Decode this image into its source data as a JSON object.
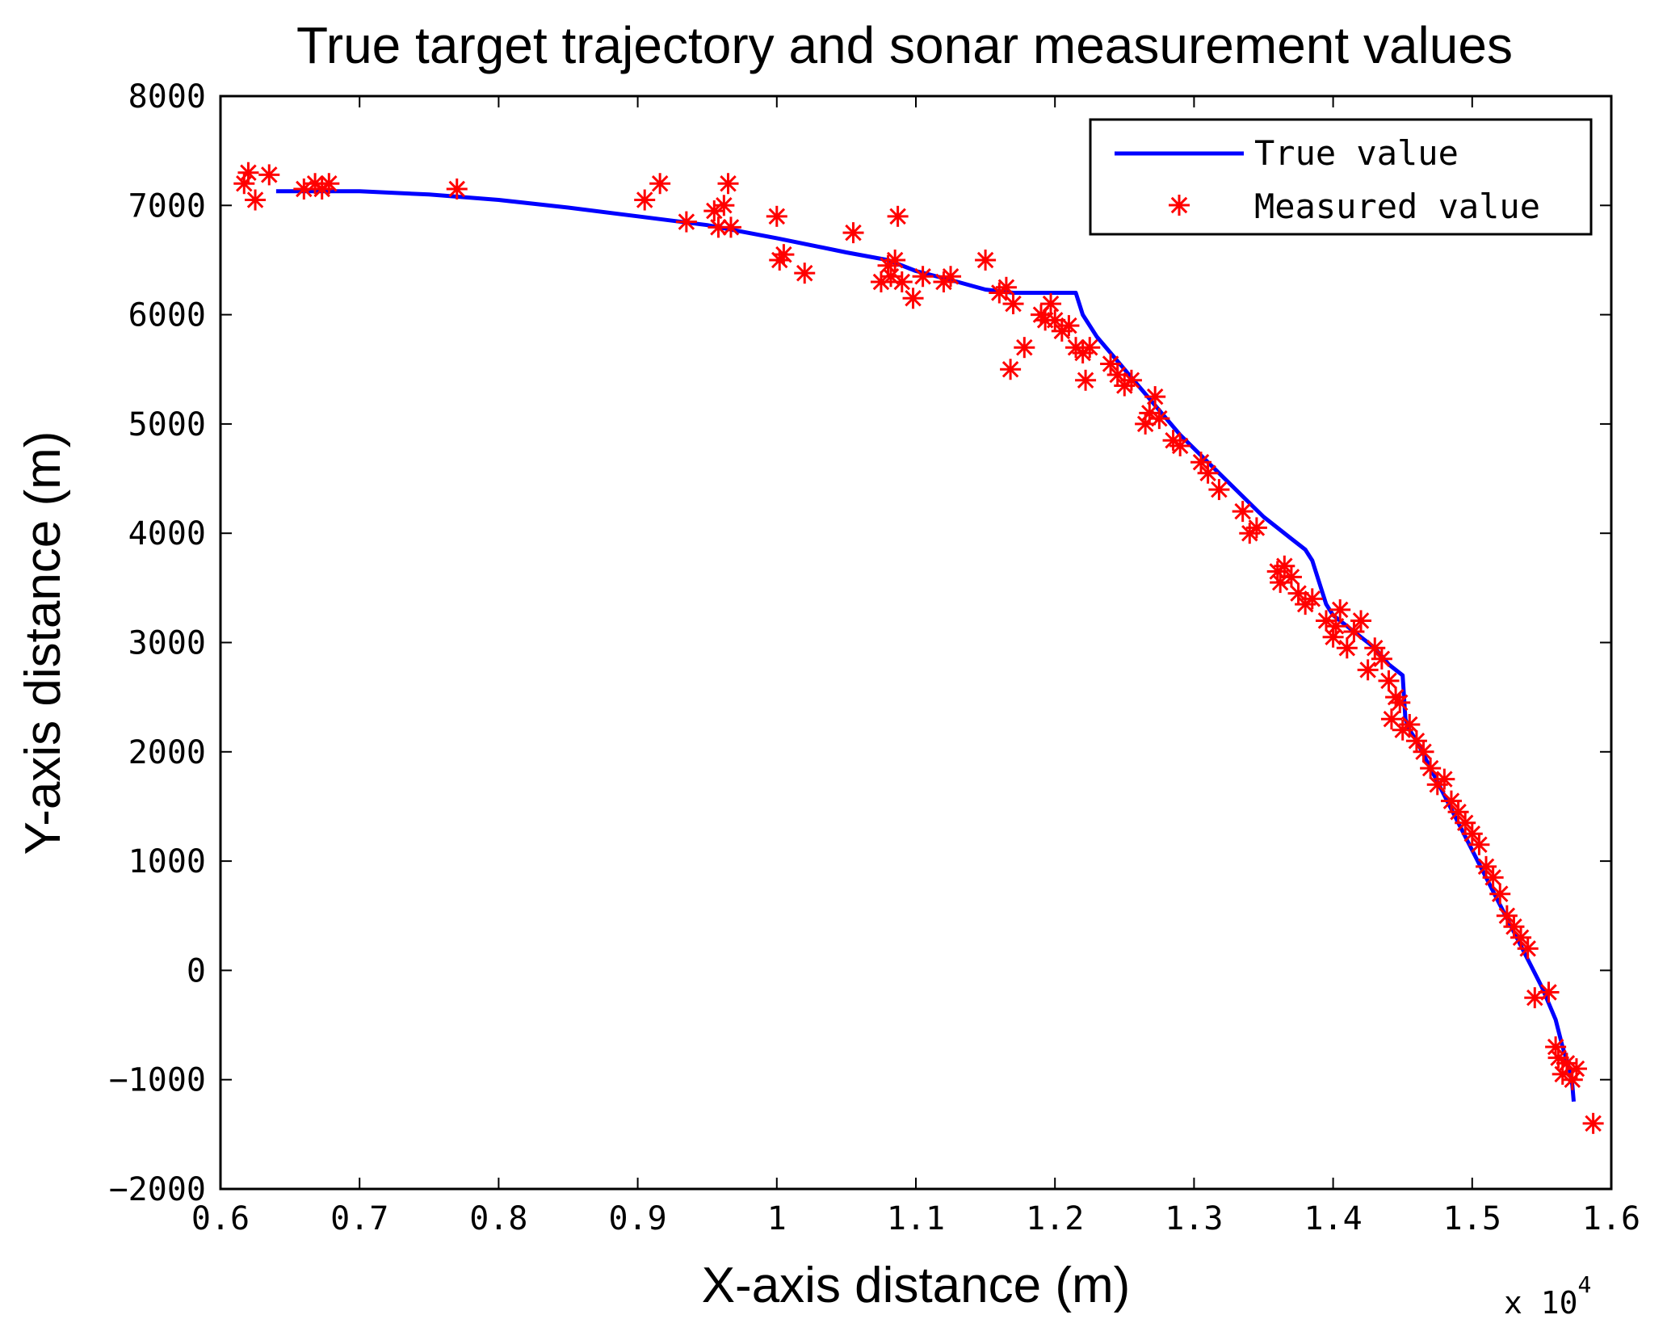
{
  "chart_data": {
    "type": "line",
    "title": "True target trajectory and sonar measurement values",
    "xlabel": "X-axis distance (m)",
    "ylabel": "Y-axis distance (m)",
    "xlim": [
      0.6,
      1.6
    ],
    "ylim": [
      -2000,
      8000
    ],
    "x_ticks": [
      "0.6",
      "0.7",
      "0.8",
      "0.9",
      "1",
      "1.1",
      "1.2",
      "1.3",
      "1.4",
      "1.5",
      "1.6"
    ],
    "y_ticks": [
      "-2000",
      "-1000",
      "0",
      "1000",
      "2000",
      "3000",
      "4000",
      "5000",
      "6000",
      "7000",
      "8000"
    ],
    "x_multiplier": {
      "prefix": "x 10",
      "exponent": "4"
    },
    "grid": false,
    "legend_position": "top-right",
    "series": [
      {
        "name": "True value",
        "style": "line",
        "color": "#0000ff",
        "x": [
          0.64,
          0.7,
          0.75,
          0.8,
          0.85,
          0.9,
          0.95,
          1.0,
          1.05,
          1.08,
          1.1,
          1.13,
          1.15,
          1.17,
          1.19,
          1.215,
          1.22,
          1.23,
          1.25,
          1.27,
          1.29,
          1.31,
          1.33,
          1.35,
          1.37,
          1.38,
          1.385,
          1.39,
          1.395,
          1.4,
          1.41,
          1.42,
          1.43,
          1.44,
          1.45,
          1.452,
          1.455,
          1.46,
          1.47,
          1.48,
          1.49,
          1.5,
          1.51,
          1.52,
          1.53,
          1.54,
          1.55,
          1.56,
          1.565,
          1.57,
          1.572,
          1.573
        ],
        "y": [
          7130,
          7130,
          7100,
          7050,
          6980,
          6900,
          6820,
          6700,
          6570,
          6500,
          6400,
          6300,
          6230,
          6200,
          6200,
          6200,
          6000,
          5800,
          5500,
          5200,
          4900,
          4650,
          4400,
          4150,
          3950,
          3850,
          3750,
          3550,
          3350,
          3250,
          3150,
          3050,
          2950,
          2800,
          2700,
          2300,
          2200,
          2100,
          1850,
          1600,
          1350,
          1100,
          850,
          600,
          350,
          100,
          -150,
          -450,
          -700,
          -900,
          -1050,
          -1200
        ]
      },
      {
        "name": "Measured value",
        "style": "marker",
        "marker": "asterisk",
        "color": "#ff0000",
        "x": [
          0.617,
          0.62,
          0.625,
          0.635,
          0.66,
          0.668,
          0.673,
          0.678,
          0.77,
          0.905,
          0.916,
          0.935,
          0.955,
          0.958,
          0.962,
          0.965,
          0.967,
          1.0,
          1.002,
          1.005,
          1.02,
          1.055,
          1.075,
          1.08,
          1.082,
          1.085,
          1.087,
          1.09,
          1.098,
          1.105,
          1.12,
          1.125,
          1.15,
          1.16,
          1.165,
          1.168,
          1.17,
          1.178,
          1.19,
          1.193,
          1.197,
          1.2,
          1.205,
          1.21,
          1.215,
          1.22,
          1.222,
          1.225,
          1.24,
          1.245,
          1.25,
          1.255,
          1.265,
          1.268,
          1.272,
          1.275,
          1.285,
          1.29,
          1.305,
          1.31,
          1.318,
          1.335,
          1.34,
          1.345,
          1.36,
          1.362,
          1.365,
          1.37,
          1.375,
          1.38,
          1.385,
          1.395,
          1.4,
          1.402,
          1.405,
          1.41,
          1.415,
          1.42,
          1.425,
          1.43,
          1.435,
          1.44,
          1.442,
          1.445,
          1.448,
          1.45,
          1.455,
          1.46,
          1.465,
          1.47,
          1.475,
          1.48,
          1.485,
          1.49,
          1.495,
          1.5,
          1.505,
          1.51,
          1.515,
          1.52,
          1.525,
          1.53,
          1.535,
          1.54,
          1.545,
          1.555,
          1.56,
          1.562,
          1.565,
          1.568,
          1.572,
          1.575,
          1.587
        ],
        "y": [
          7200,
          7300,
          7050,
          7280,
          7150,
          7200,
          7150,
          7200,
          7150,
          7050,
          7200,
          6850,
          6950,
          6800,
          7000,
          7200,
          6800,
          6900,
          6500,
          6550,
          6380,
          6750,
          6300,
          6450,
          6350,
          6500,
          6900,
          6300,
          6150,
          6350,
          6300,
          6350,
          6500,
          6200,
          6250,
          5500,
          6100,
          5700,
          6000,
          5950,
          6100,
          5950,
          5850,
          5900,
          5700,
          5650,
          5400,
          5700,
          5550,
          5450,
          5350,
          5400,
          5000,
          5100,
          5250,
          5050,
          4850,
          4800,
          4650,
          4550,
          4400,
          4200,
          4000,
          4050,
          3650,
          3550,
          3700,
          3600,
          3450,
          3350,
          3400,
          3200,
          3050,
          3150,
          3300,
          2950,
          3100,
          3200,
          2750,
          2950,
          2850,
          2650,
          2300,
          2500,
          2450,
          2200,
          2250,
          2100,
          2000,
          1850,
          1700,
          1750,
          1550,
          1450,
          1350,
          1250,
          1150,
          950,
          850,
          700,
          500,
          400,
          300,
          200,
          -250,
          -200,
          -700,
          -800,
          -950,
          -850,
          -1000,
          -900,
          -1400
        ]
      }
    ]
  }
}
